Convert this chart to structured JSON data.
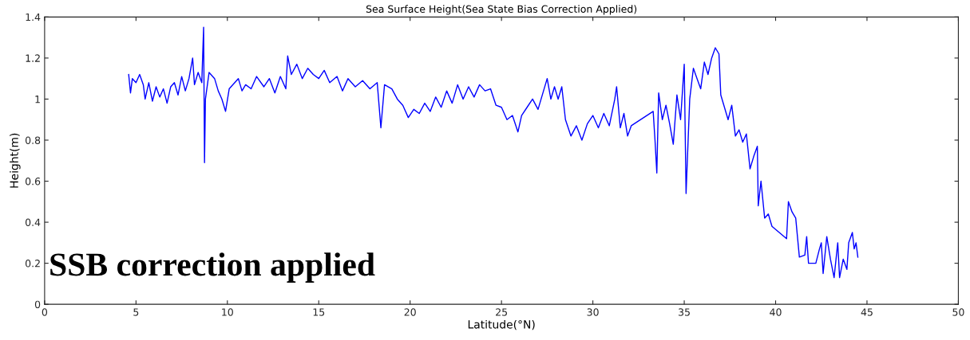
{
  "chart_data": {
    "type": "line",
    "title": "Sea Surface Height(Sea State Bias Correction Applied)",
    "xlabel": "Latitude(°N)",
    "ylabel": "Height(m)",
    "annotations": [
      "SSB correction applied"
    ],
    "xlim": [
      0,
      50
    ],
    "xticks": [
      0,
      5,
      10,
      15,
      20,
      25,
      30,
      35,
      40,
      45,
      50
    ],
    "ylim": [
      0,
      1.4
    ],
    "yticks": [
      0,
      0.2,
      0.4,
      0.6,
      0.8,
      1,
      1.2,
      1.4
    ],
    "grid": false,
    "series": [
      {
        "color": "#0000ff",
        "x": [
          4.6,
          4.7,
          4.8,
          5.0,
          5.2,
          5.4,
          5.5,
          5.7,
          5.9,
          6.1,
          6.3,
          6.5,
          6.7,
          6.9,
          7.1,
          7.3,
          7.5,
          7.7,
          7.9,
          8.1,
          8.2,
          8.4,
          8.6,
          8.7,
          8.75,
          8.8,
          9.0,
          9.3,
          9.5,
          9.7,
          9.9,
          10.1,
          10.6,
          10.8,
          11.0,
          11.3,
          11.6,
          12.0,
          12.3,
          12.6,
          12.9,
          13.2,
          13.3,
          13.5,
          13.8,
          14.1,
          14.4,
          14.7,
          15.0,
          15.3,
          15.6,
          16.0,
          16.3,
          16.6,
          17.0,
          17.4,
          17.8,
          18.2,
          18.4,
          18.6,
          19.0,
          19.3,
          19.6,
          19.9,
          20.2,
          20.5,
          20.8,
          21.1,
          21.4,
          21.7,
          22.0,
          22.3,
          22.6,
          22.9,
          23.2,
          23.5,
          23.8,
          24.1,
          24.4,
          24.7,
          25.0,
          25.3,
          25.6,
          25.9,
          26.1,
          26.4,
          26.7,
          27.0,
          27.3,
          27.5,
          27.7,
          27.9,
          28.1,
          28.3,
          28.5,
          28.8,
          29.1,
          29.4,
          29.7,
          30.0,
          30.3,
          30.6,
          30.9,
          31.2,
          31.3,
          31.5,
          31.7,
          31.9,
          32.1,
          33.3,
          33.4,
          33.5,
          33.6,
          33.8,
          34.0,
          34.2,
          34.4,
          34.6,
          34.8,
          35.0,
          35.1,
          35.3,
          35.5,
          35.7,
          35.9,
          36.1,
          36.3,
          36.5,
          36.7,
          36.9,
          37.0,
          37.2,
          37.4,
          37.6,
          37.8,
          38.0,
          38.2,
          38.4,
          38.6,
          38.8,
          39.0,
          39.05,
          39.2,
          39.4,
          39.6,
          39.8,
          40.6,
          40.7,
          40.9,
          41.1,
          41.3,
          41.6,
          41.7,
          41.8,
          42.2,
          42.4,
          42.5,
          42.6,
          42.8,
          43.0,
          43.2,
          43.4,
          43.5,
          43.7,
          43.9,
          44.0,
          44.2,
          44.3,
          44.4,
          44.5
        ],
        "values": [
          1.12,
          1.03,
          1.1,
          1.08,
          1.12,
          1.07,
          1.0,
          1.08,
          0.99,
          1.06,
          1.01,
          1.05,
          0.98,
          1.06,
          1.08,
          1.02,
          1.11,
          1.04,
          1.1,
          1.2,
          1.07,
          1.13,
          1.08,
          1.35,
          0.69,
          1.0,
          1.13,
          1.1,
          1.04,
          1.0,
          0.94,
          1.05,
          1.1,
          1.04,
          1.07,
          1.05,
          1.11,
          1.06,
          1.1,
          1.03,
          1.11,
          1.05,
          1.21,
          1.12,
          1.17,
          1.1,
          1.15,
          1.12,
          1.1,
          1.14,
          1.08,
          1.11,
          1.04,
          1.1,
          1.06,
          1.09,
          1.05,
          1.08,
          0.86,
          1.07,
          1.05,
          1.0,
          0.97,
          0.91,
          0.95,
          0.93,
          0.98,
          0.94,
          1.01,
          0.96,
          1.04,
          0.98,
          1.07,
          1.0,
          1.06,
          1.01,
          1.07,
          1.04,
          1.05,
          0.97,
          0.96,
          0.9,
          0.92,
          0.84,
          0.92,
          0.96,
          1.0,
          0.95,
          1.04,
          1.1,
          1.0,
          1.06,
          1.0,
          1.06,
          0.9,
          0.82,
          0.87,
          0.8,
          0.88,
          0.92,
          0.86,
          0.93,
          0.87,
          1.0,
          1.06,
          0.86,
          0.93,
          0.82,
          0.87,
          0.94,
          0.8,
          0.64,
          1.03,
          0.9,
          0.97,
          0.88,
          0.78,
          1.02,
          0.9,
          1.17,
          0.54,
          1.0,
          1.15,
          1.1,
          1.05,
          1.18,
          1.12,
          1.2,
          1.25,
          1.22,
          1.02,
          0.96,
          0.9,
          0.97,
          0.82,
          0.85,
          0.79,
          0.83,
          0.66,
          0.72,
          0.77,
          0.48,
          0.6,
          0.42,
          0.44,
          0.38,
          0.32,
          0.5,
          0.45,
          0.42,
          0.23,
          0.24,
          0.33,
          0.2,
          0.2,
          0.27,
          0.3,
          0.15,
          0.33,
          0.22,
          0.13,
          0.3,
          0.13,
          0.22,
          0.17,
          0.3,
          0.35,
          0.27,
          0.3,
          0.23
        ]
      }
    ]
  }
}
